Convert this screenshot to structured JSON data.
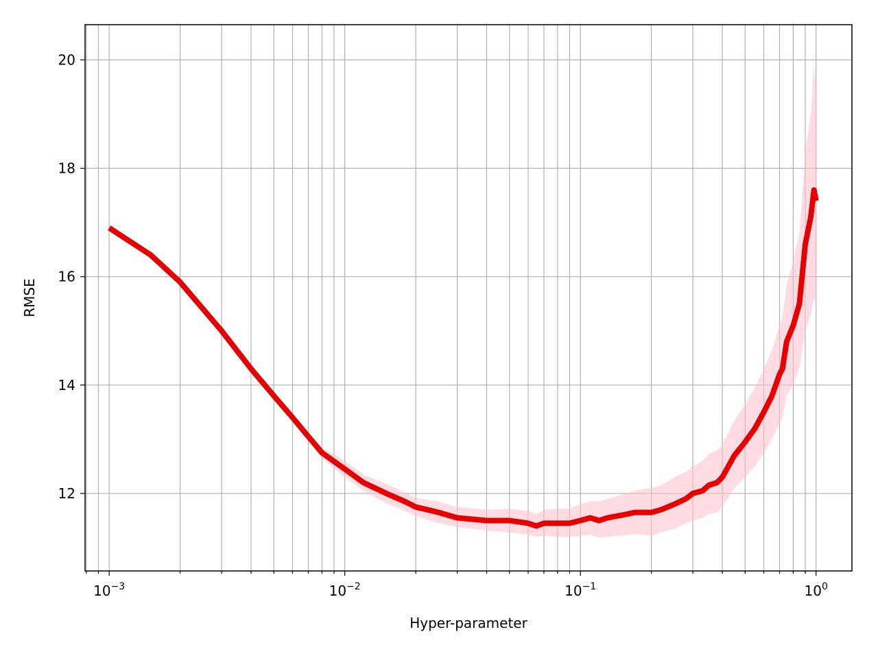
{
  "chart_data": {
    "type": "line",
    "title": "",
    "xlabel": "Hyper-parameter",
    "ylabel": "RMSE",
    "xscale": "log",
    "xlim": [
      0.00079,
      1.42
    ],
    "ylim": [
      10.57,
      20.65
    ],
    "grid": true,
    "grid_minor_x": true,
    "legend": "none",
    "x_tick_values": [
      0.001,
      0.01,
      0.1,
      1
    ],
    "x_tick_labels": [
      {
        "base": "10",
        "exp": "−3"
      },
      {
        "base": "10",
        "exp": "−2"
      },
      {
        "base": "10",
        "exp": "−1"
      },
      {
        "base": "10",
        "exp": "0"
      }
    ],
    "y_ticks": [
      12,
      14,
      16,
      18,
      20
    ],
    "y_tick_labels": [
      "12",
      "14",
      "16",
      "18",
      "20"
    ],
    "series": [
      {
        "color": "#e50000",
        "band_color": "#ffc0cb",
        "x": [
          0.001,
          0.0015,
          0.002,
          0.003,
          0.004,
          0.005,
          0.006,
          0.007,
          0.008,
          0.01,
          0.012,
          0.015,
          0.018,
          0.02,
          0.025,
          0.03,
          0.04,
          0.05,
          0.06,
          0.065,
          0.07,
          0.08,
          0.09,
          0.1,
          0.11,
          0.12,
          0.13,
          0.15,
          0.17,
          0.2,
          0.22,
          0.25,
          0.28,
          0.3,
          0.33,
          0.35,
          0.38,
          0.4,
          0.45,
          0.5,
          0.55,
          0.6,
          0.65,
          0.7,
          0.72,
          0.75,
          0.8,
          0.85,
          0.9,
          0.95,
          0.98,
          1.0
        ],
        "y": [
          16.9,
          16.4,
          15.9,
          15.0,
          14.3,
          13.8,
          13.4,
          13.05,
          12.75,
          12.45,
          12.2,
          12.0,
          11.85,
          11.75,
          11.65,
          11.55,
          11.5,
          11.5,
          11.45,
          11.4,
          11.45,
          11.45,
          11.45,
          11.5,
          11.55,
          11.5,
          11.55,
          11.6,
          11.65,
          11.65,
          11.7,
          11.8,
          11.9,
          12.0,
          12.05,
          12.15,
          12.2,
          12.3,
          12.7,
          12.95,
          13.2,
          13.5,
          13.8,
          14.2,
          14.3,
          14.8,
          15.1,
          15.5,
          16.6,
          17.1,
          17.6,
          17.4
        ],
        "y_lower": [
          16.9,
          16.4,
          15.9,
          15.0,
          14.3,
          13.78,
          13.35,
          12.98,
          12.65,
          12.3,
          12.05,
          11.82,
          11.68,
          11.58,
          11.45,
          11.38,
          11.32,
          11.28,
          11.24,
          11.2,
          11.22,
          11.2,
          11.2,
          11.22,
          11.24,
          11.18,
          11.2,
          11.22,
          11.25,
          11.22,
          11.28,
          11.35,
          11.45,
          11.5,
          11.55,
          11.62,
          11.65,
          11.75,
          12.1,
          12.3,
          12.5,
          12.75,
          13.0,
          13.3,
          13.4,
          13.8,
          14.0,
          14.3,
          15.0,
          15.3,
          15.6,
          15.5
        ],
        "y_upper": [
          16.9,
          16.4,
          15.9,
          15.0,
          14.3,
          13.82,
          13.45,
          13.12,
          12.85,
          12.6,
          12.35,
          12.18,
          12.02,
          11.92,
          11.85,
          11.75,
          11.7,
          11.72,
          11.68,
          11.62,
          11.7,
          11.72,
          11.72,
          11.8,
          11.86,
          11.85,
          11.9,
          11.98,
          12.05,
          12.1,
          12.15,
          12.3,
          12.4,
          12.5,
          12.6,
          12.72,
          12.8,
          12.9,
          13.35,
          13.65,
          13.95,
          14.3,
          14.65,
          15.1,
          15.25,
          15.85,
          16.3,
          16.8,
          18.3,
          19.0,
          19.9,
          19.5
        ]
      }
    ]
  }
}
